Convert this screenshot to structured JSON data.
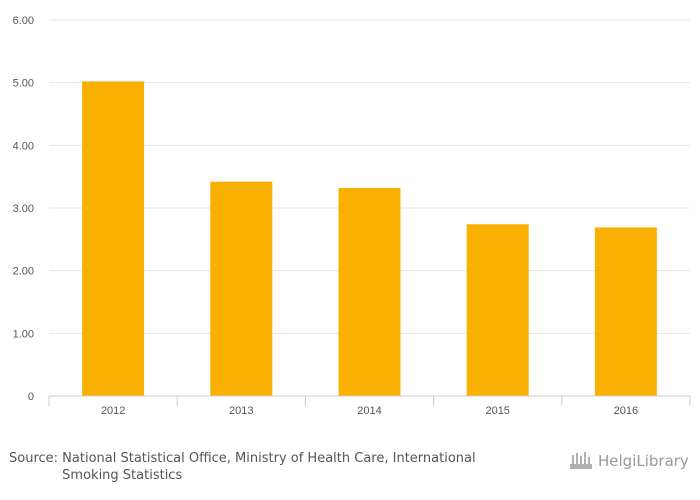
{
  "chart_data": {
    "type": "bar",
    "categories": [
      "2012",
      "2013",
      "2014",
      "2015",
      "2016"
    ],
    "values": [
      5.02,
      3.42,
      3.32,
      2.74,
      2.69
    ],
    "ylim": [
      0,
      6
    ],
    "yticks": [
      "0",
      "1.00",
      "2.00",
      "3.00",
      "4.00",
      "5.00",
      "6.00"
    ],
    "ytick_values": [
      0,
      1,
      2,
      3,
      4,
      5,
      6
    ],
    "grid": true,
    "legend": "none",
    "bar_color": "#F9B000"
  },
  "footer": {
    "source_label": "Source:",
    "source_text": "National Statistical Office, Ministry of Health Care, International Smoking Statistics",
    "brand": "HelgiLibrary"
  },
  "icons": {
    "brand_logo": "helgi-library-logo-icon"
  }
}
